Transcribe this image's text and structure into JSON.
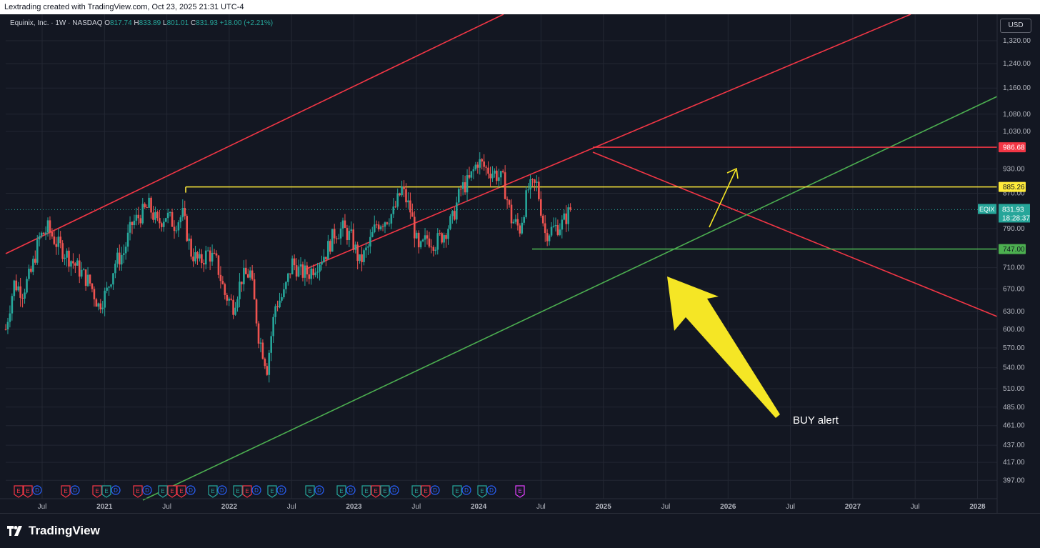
{
  "header": {
    "caption": "Lextrading created with TradingView.com, Oct 23, 2025 21:31 UTC-4"
  },
  "legend": {
    "symbol": "Equinix, Inc. · 1W · NASDAQ",
    "o_label": "O",
    "o_value": "817.74",
    "h_label": "H",
    "h_value": "833.89",
    "l_label": "L",
    "l_value": "801.01",
    "c_label": "C",
    "c_value": "831.93",
    "change": "+18.00 (+2.21%)"
  },
  "currency_button": "USD",
  "footer": {
    "brand": "TradingView"
  },
  "annotation": {
    "text": "BUY alert"
  },
  "colors": {
    "background": "#131722",
    "grid": "#232733",
    "up": "#26a69a",
    "down": "#ef5350",
    "red_line": "#f23645",
    "green_line": "#4caf50",
    "yellow_line": "#ffeb3b",
    "arrow": "#f5e625"
  },
  "chart_data": {
    "type": "candlestick",
    "symbol": "EQIX",
    "interval": "1W",
    "scale": "log",
    "grid": true,
    "x_ticks": [
      "Jul",
      "2021",
      "Jul",
      "2022",
      "Jul",
      "2023",
      "Jul",
      "2024",
      "Jul",
      "2025",
      "Jul",
      "2026",
      "Jul",
      "2027",
      "Jul",
      "2028"
    ],
    "y_ticks": [
      "1,320.00",
      "1,240.00",
      "1,160.00",
      "1,080.00",
      "1,030.00",
      "930.00",
      "870.00",
      "790.00",
      "710.00",
      "670.00",
      "630.00",
      "600.00",
      "570.00",
      "540.00",
      "510.00",
      "485.00",
      "461.00",
      "437.00",
      "417.00",
      "397.00"
    ],
    "ylim": [
      385,
      1370
    ],
    "last_price": {
      "label": "EQIX",
      "value": "831.93",
      "countdown": "18:28:37"
    },
    "price_levels": [
      {
        "value": "986.68",
        "color": "red"
      },
      {
        "value": "885.26",
        "color": "yellow"
      },
      {
        "value": "747.00",
        "color": "green"
      }
    ],
    "price_path": [
      [
        "2020-03",
        600
      ],
      [
        "2020-04",
        680
      ],
      [
        "2020-05",
        665
      ],
      [
        "2020-06",
        700
      ],
      [
        "2020-07",
        770
      ],
      [
        "2020-08",
        790
      ],
      [
        "2020-09",
        760
      ],
      [
        "2020-10",
        740
      ],
      [
        "2020-11",
        720
      ],
      [
        "2020-12",
        700
      ],
      [
        "2021-01",
        680
      ],
      [
        "2021-02",
        640
      ],
      [
        "2021-03",
        665
      ],
      [
        "2021-04",
        720
      ],
      [
        "2021-05",
        740
      ],
      [
        "2021-06",
        800
      ],
      [
        "2021-07",
        820
      ],
      [
        "2021-08",
        840
      ],
      [
        "2021-09",
        800
      ],
      [
        "2021-10",
        820
      ],
      [
        "2021-11",
        800
      ],
      [
        "2021-12",
        820
      ],
      [
        "2022-01",
        740
      ],
      [
        "2022-02",
        720
      ],
      [
        "2022-03",
        740
      ],
      [
        "2022-04",
        720
      ],
      [
        "2022-05",
        660
      ],
      [
        "2022-06",
        640
      ],
      [
        "2022-07",
        690
      ],
      [
        "2022-08",
        700
      ],
      [
        "2022-09",
        590
      ],
      [
        "2022-10",
        540
      ],
      [
        "2022-11",
        640
      ],
      [
        "2022-12",
        660
      ],
      [
        "2023-01",
        720
      ],
      [
        "2023-02",
        700
      ],
      [
        "2023-03",
        700
      ],
      [
        "2023-04",
        720
      ],
      [
        "2023-05",
        740
      ],
      [
        "2023-06",
        780
      ],
      [
        "2023-07",
        790
      ],
      [
        "2023-08",
        770
      ],
      [
        "2023-09",
        720
      ],
      [
        "2023-10",
        750
      ],
      [
        "2023-11",
        800
      ],
      [
        "2023-12",
        810
      ],
      [
        "2024-01",
        825
      ],
      [
        "2024-02",
        880
      ],
      [
        "2024-03",
        830
      ],
      [
        "2024-04",
        740
      ],
      [
        "2024-05",
        770
      ],
      [
        "2024-06",
        760
      ],
      [
        "2024-07",
        780
      ],
      [
        "2024-08",
        810
      ],
      [
        "2024-09",
        880
      ],
      [
        "2024-10",
        900
      ],
      [
        "2024-11",
        950
      ],
      [
        "2024-12",
        930
      ],
      [
        "2025-01",
        920
      ],
      [
        "2025-02",
        900
      ],
      [
        "2025-03",
        810
      ],
      [
        "2025-04",
        790
      ],
      [
        "2025-05",
        880
      ],
      [
        "2025-06",
        890
      ],
      [
        "2025-07",
        780
      ],
      [
        "2025-08",
        790
      ],
      [
        "2025-09",
        800
      ],
      [
        "2025-10",
        831.93
      ]
    ],
    "events": [
      {
        "label": "E",
        "kind": "red"
      },
      {
        "label": "E",
        "kind": "red"
      },
      {
        "label": "D",
        "kind": "blue"
      },
      {
        "label": "E",
        "kind": "red"
      },
      {
        "label": "D",
        "kind": "blue"
      },
      {
        "label": "E",
        "kind": "red"
      },
      {
        "label": "E",
        "kind": "green"
      },
      {
        "label": "D",
        "kind": "blue"
      },
      {
        "label": "E",
        "kind": "red"
      },
      {
        "label": "D",
        "kind": "blue"
      },
      {
        "label": "E",
        "kind": "green"
      },
      {
        "label": "E",
        "kind": "red"
      },
      {
        "label": "E",
        "kind": "red"
      },
      {
        "label": "D",
        "kind": "blue"
      },
      {
        "label": "E",
        "kind": "green"
      },
      {
        "label": "D",
        "kind": "blue"
      },
      {
        "label": "E",
        "kind": "green"
      },
      {
        "label": "E",
        "kind": "red"
      },
      {
        "label": "D",
        "kind": "blue"
      },
      {
        "label": "E",
        "kind": "green"
      },
      {
        "label": "D",
        "kind": "blue"
      },
      {
        "label": "E",
        "kind": "green"
      },
      {
        "label": "D",
        "kind": "blue"
      },
      {
        "label": "E",
        "kind": "green"
      },
      {
        "label": "D",
        "kind": "blue"
      },
      {
        "label": "E",
        "kind": "green"
      },
      {
        "label": "E",
        "kind": "red"
      },
      {
        "label": "E",
        "kind": "green"
      },
      {
        "label": "D",
        "kind": "blue"
      },
      {
        "label": "E",
        "kind": "green"
      },
      {
        "label": "E",
        "kind": "red"
      },
      {
        "label": "D",
        "kind": "blue"
      },
      {
        "label": "E",
        "kind": "green"
      },
      {
        "label": "D",
        "kind": "blue"
      },
      {
        "label": "E",
        "kind": "green"
      },
      {
        "label": "D",
        "kind": "blue"
      },
      {
        "label": "E",
        "kind": "magenta"
      }
    ]
  }
}
